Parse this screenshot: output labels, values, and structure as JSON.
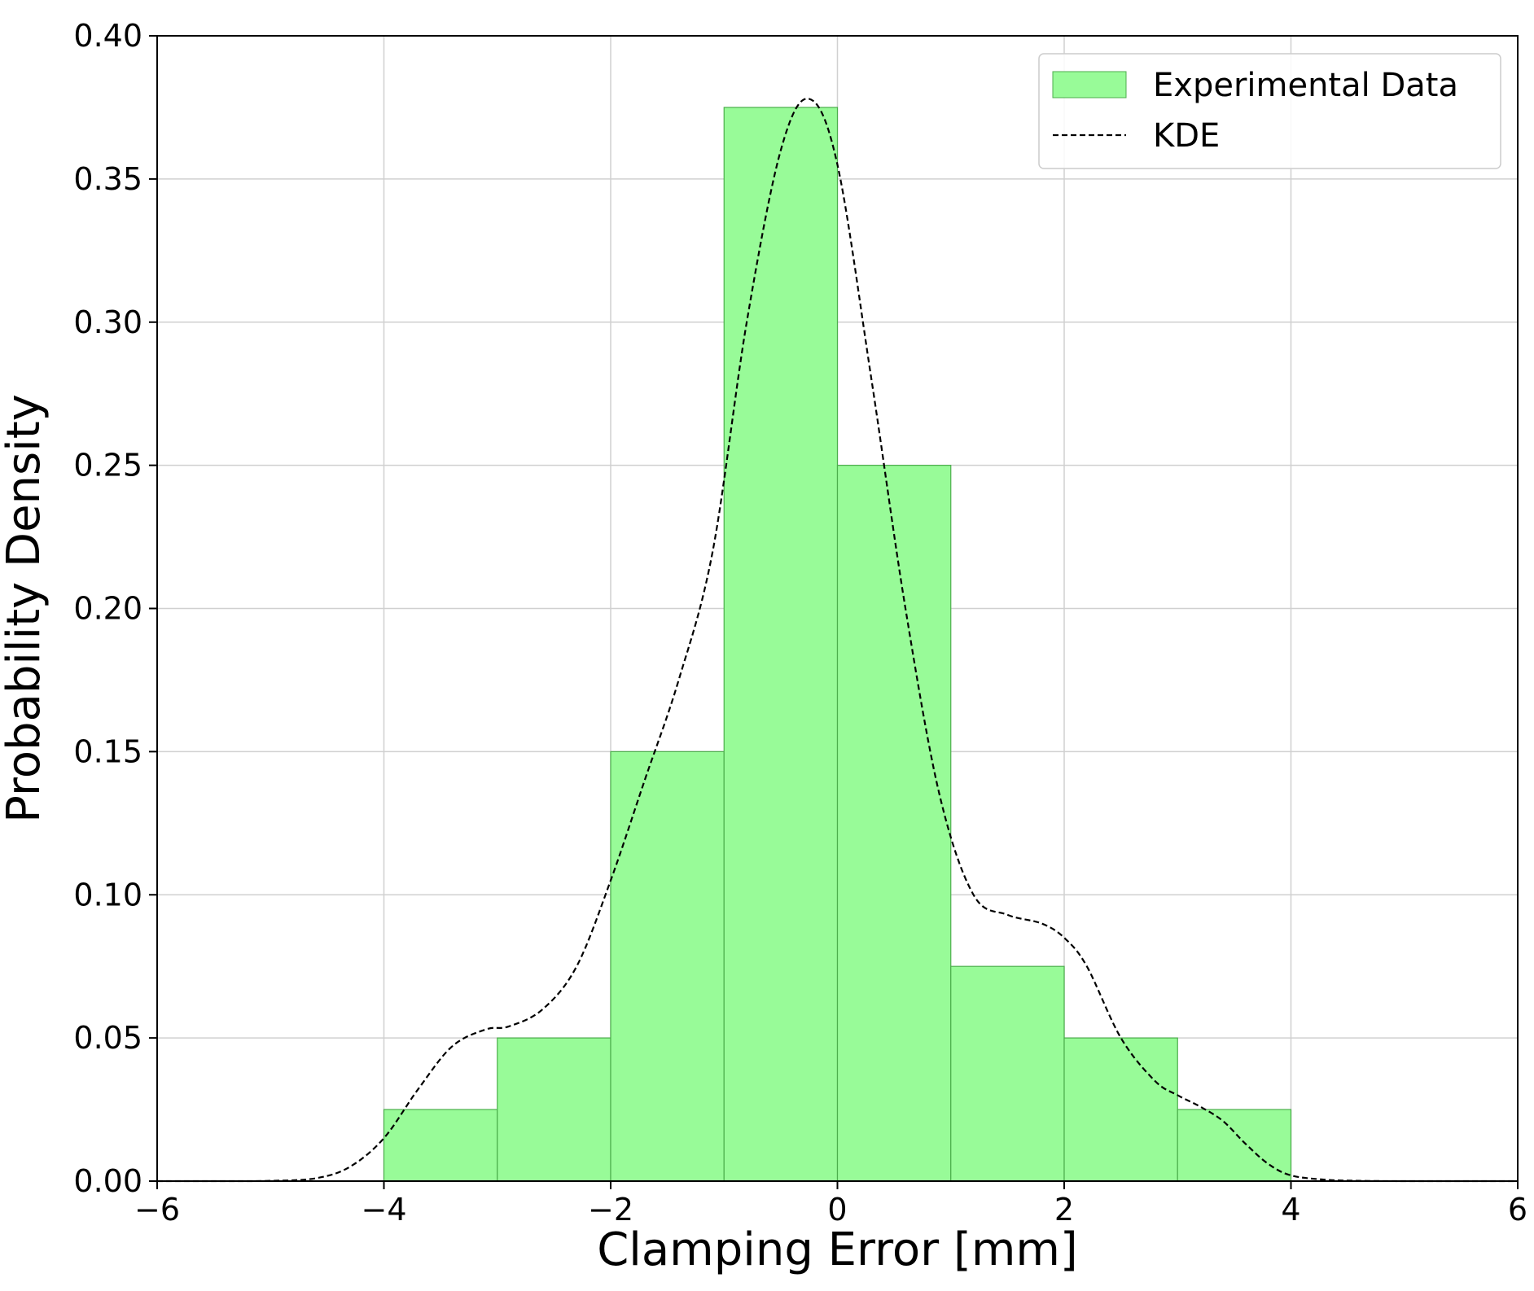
{
  "chart_data": {
    "type": "bar",
    "xlabel": "Clamping Error [mm]",
    "ylabel": "Probability Density",
    "xlim": [
      -6,
      6
    ],
    "ylim": [
      0,
      0.4
    ],
    "xticks": [
      -6,
      -4,
      -2,
      0,
      2,
      4,
      6
    ],
    "xtick_labels": [
      "−6",
      "−4",
      "−2",
      "0",
      "2",
      "4",
      "6"
    ],
    "yticks": [
      0.0,
      0.05,
      0.1,
      0.15,
      0.2,
      0.25,
      0.3,
      0.35,
      0.4
    ],
    "ytick_labels": [
      "0.00",
      "0.05",
      "0.10",
      "0.15",
      "0.20",
      "0.25",
      "0.30",
      "0.35",
      "0.40"
    ],
    "grid": true,
    "legend_position": "top-right",
    "series": [
      {
        "name": "Experimental Data",
        "kind": "histogram",
        "color": "#98fb98",
        "edge_color": "#4cae4c",
        "bins": [
          -4,
          -3,
          -2,
          -1,
          0,
          1,
          2,
          3,
          4
        ],
        "values": [
          0.025,
          0.05,
          0.15,
          0.375,
          0.25,
          0.075,
          0.05,
          0.025
        ]
      },
      {
        "name": "KDE",
        "kind": "line",
        "style": "dashed",
        "color": "#000000",
        "x": [
          -6.0,
          -5.5,
          -5.0,
          -4.6,
          -4.3,
          -4.0,
          -3.7,
          -3.4,
          -3.1,
          -2.9,
          -2.6,
          -2.3,
          -2.0,
          -1.7,
          -1.4,
          -1.1,
          -0.8,
          -0.5,
          -0.25,
          0.0,
          0.3,
          0.6,
          0.9,
          1.2,
          1.5,
          1.8,
          2.0,
          2.2,
          2.5,
          2.8,
          3.0,
          3.2,
          3.4,
          3.6,
          3.8,
          4.0,
          4.3,
          4.6,
          5.0,
          5.5,
          6.0
        ],
        "y": [
          0.0,
          0.0,
          0.0001,
          0.001,
          0.005,
          0.015,
          0.032,
          0.047,
          0.053,
          0.054,
          0.06,
          0.075,
          0.105,
          0.14,
          0.175,
          0.22,
          0.3,
          0.36,
          0.378,
          0.355,
          0.28,
          0.2,
          0.135,
          0.1,
          0.093,
          0.09,
          0.085,
          0.075,
          0.05,
          0.035,
          0.03,
          0.026,
          0.021,
          0.013,
          0.006,
          0.002,
          0.0005,
          0.0001,
          0.0,
          0.0,
          0.0
        ]
      }
    ]
  }
}
